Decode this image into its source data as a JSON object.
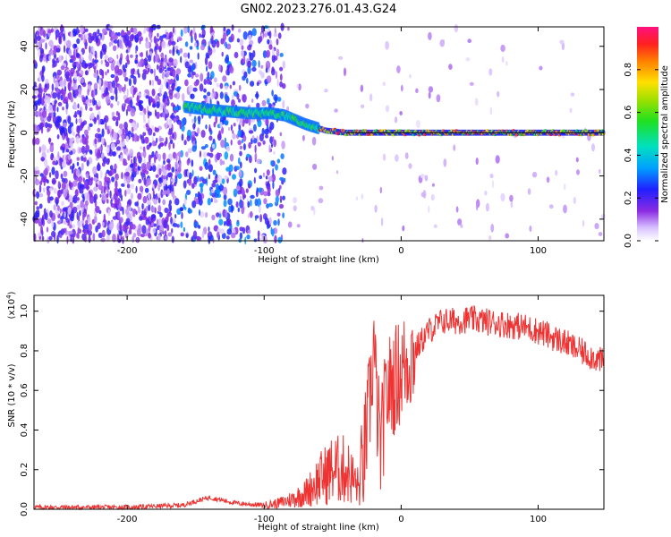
{
  "title": "GN02.2023.276.01.43.G24",
  "chart_data": [
    {
      "type": "heatmap",
      "xlabel": "Height of straight line (km)",
      "ylabel": "Frequency (Hz)",
      "xlim": [
        -268,
        148
      ],
      "ylim": [
        -50,
        49
      ],
      "x_ticks": [
        -200,
        -100,
        0,
        100
      ],
      "y_ticks": [
        -40,
        -20,
        0,
        20,
        40
      ],
      "colorbar": {
        "label": "Normalized spectral amplitude",
        "range": [
          0,
          1
        ],
        "ticks": [
          0.0,
          0.2,
          0.4,
          0.6,
          0.8
        ]
      },
      "regions": [
        {
          "x_range": [
            -268,
            -165
          ],
          "description_level": "dense scattered noise",
          "amplitude": 0.2
        },
        {
          "x_range": [
            -165,
            -85
          ],
          "description_level": "mixed noise and signal",
          "amplitude": 0.3
        },
        {
          "x_range": [
            -85,
            148
          ],
          "description_level": "coherent signal near 0 Hz",
          "amplitude": 0.9
        }
      ],
      "signal_track": [
        {
          "x": -158,
          "y": 12
        },
        {
          "x": -145,
          "y": 11
        },
        {
          "x": -130,
          "y": 10
        },
        {
          "x": -110,
          "y": 9
        },
        {
          "x": -95,
          "y": 9
        },
        {
          "x": -85,
          "y": 8
        },
        {
          "x": -70,
          "y": 4
        },
        {
          "x": -55,
          "y": 1
        },
        {
          "x": -40,
          "y": 0
        },
        {
          "x": -20,
          "y": 0
        },
        {
          "x": 0,
          "y": 0
        },
        {
          "x": 50,
          "y": 0
        },
        {
          "x": 100,
          "y": 0
        },
        {
          "x": 148,
          "y": 0
        }
      ]
    },
    {
      "type": "line",
      "xlabel": "Height of straight line (km)",
      "ylabel": "SNR (10 * v/v)",
      "y_multiplier": "(x10",
      "y_multiplier_exp": "4",
      "y_multiplier_close": ")",
      "xlim": [
        -268,
        148
      ],
      "ylim": [
        0,
        1.08
      ],
      "x_ticks": [
        -200,
        -100,
        0,
        100
      ],
      "y_ticks": [
        0.0,
        0.2,
        0.4,
        0.6,
        0.8,
        1.0
      ],
      "color": "#ee3333",
      "series": [
        {
          "x": [
            -268,
            -200,
            -160,
            -150,
            -140,
            -120,
            -100,
            -90,
            -80,
            -70,
            -60,
            -50,
            -40,
            -35,
            -30,
            -25,
            -22,
            -20,
            -18,
            -15,
            -12,
            -10,
            -5,
            0,
            10,
            20,
            30,
            40,
            50,
            60,
            70,
            80,
            90,
            100,
            110,
            120,
            130,
            140,
            148
          ],
          "y": [
            0.01,
            0.01,
            0.02,
            0.04,
            0.06,
            0.03,
            0.02,
            0.03,
            0.05,
            0.08,
            0.15,
            0.2,
            0.2,
            0.15,
            0.1,
            0.4,
            0.6,
            0.85,
            0.55,
            0.3,
            0.5,
            0.6,
            0.65,
            0.7,
            0.8,
            0.9,
            0.95,
            0.95,
            0.96,
            0.95,
            0.94,
            0.93,
            0.92,
            0.9,
            0.87,
            0.84,
            0.8,
            0.77,
            0.74
          ]
        }
      ]
    }
  ]
}
